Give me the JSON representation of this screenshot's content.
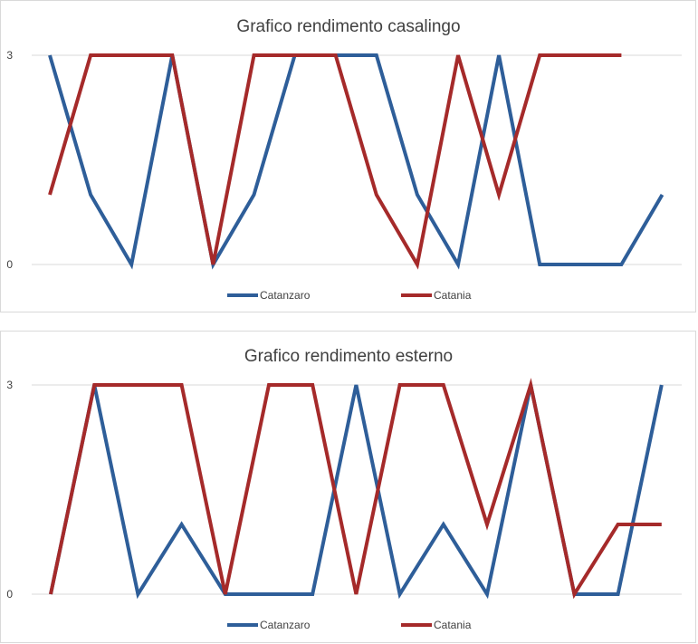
{
  "chart_data": [
    {
      "type": "line",
      "title": "Grafico rendimento casalingo",
      "xlabel": "",
      "ylabel": "",
      "ylim": [
        0,
        3
      ],
      "yticks": [
        0,
        3
      ],
      "grid": true,
      "legend_position": "bottom",
      "x": [
        1,
        2,
        3,
        4,
        5,
        6,
        7,
        8,
        9,
        10,
        11,
        12,
        13,
        14,
        15,
        16
      ],
      "series": [
        {
          "name": "Catanzaro",
          "color": "#2e5e99",
          "values": [
            3,
            1,
            0,
            3,
            0,
            1,
            3,
            3,
            3,
            1,
            0,
            3,
            0,
            0,
            0,
            1
          ]
        },
        {
          "name": "Catania",
          "color": "#a52a2a",
          "values": [
            1,
            3,
            3,
            3,
            0,
            3,
            3,
            3,
            1,
            0,
            3,
            1,
            3,
            3,
            3,
            null
          ]
        }
      ]
    },
    {
      "type": "line",
      "title": "Grafico rendimento esterno",
      "xlabel": "",
      "ylabel": "",
      "ylim": [
        0,
        3
      ],
      "yticks": [
        0,
        3
      ],
      "grid": true,
      "legend_position": "bottom",
      "x": [
        1,
        2,
        3,
        4,
        5,
        6,
        7,
        8,
        9,
        10,
        11,
        12,
        13,
        14,
        15,
        16
      ],
      "series": [
        {
          "name": "Catanzaro",
          "color": "#2e5e99",
          "values": [
            0,
            3,
            0,
            1,
            0,
            0,
            0,
            3,
            0,
            1,
            0,
            3,
            0,
            0,
            3,
            null
          ]
        },
        {
          "name": "Catania",
          "color": "#a52a2a",
          "values": [
            0,
            3,
            3,
            3,
            0,
            3,
            3,
            0,
            3,
            3,
            1,
            3,
            0,
            1,
            1,
            null
          ]
        }
      ]
    }
  ]
}
